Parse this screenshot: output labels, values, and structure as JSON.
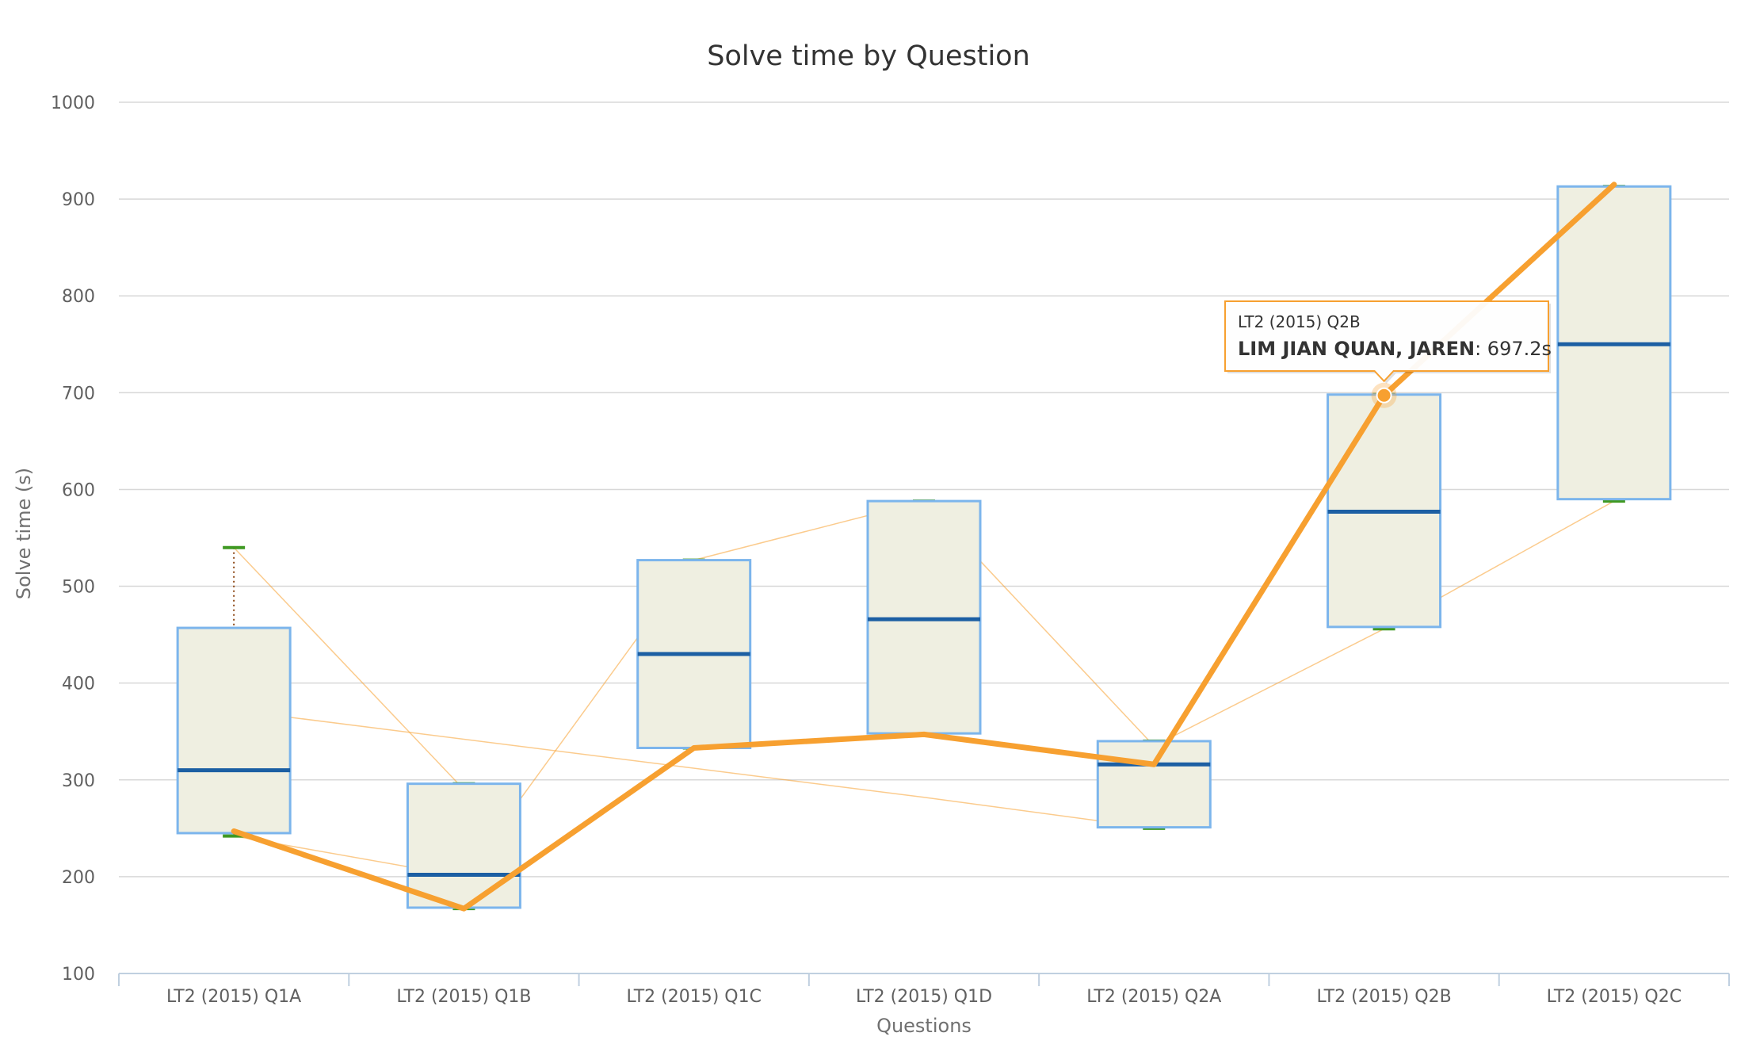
{
  "chart_data": {
    "type": "boxplot",
    "title": "Solve time by Question",
    "xlabel": "Questions",
    "ylabel": "Solve time (s)",
    "ylim": [
      100,
      1000
    ],
    "yticks": [
      100,
      200,
      300,
      400,
      500,
      600,
      700,
      800,
      900,
      1000
    ],
    "grid": true,
    "categories": [
      "LT2 (2015) Q1A",
      "LT2 (2015) Q1B",
      "LT2 (2015) Q1C",
      "LT2 (2015) Q1D",
      "LT2 (2015) Q2A",
      "LT2 (2015) Q2B",
      "LT2 (2015) Q2C"
    ],
    "boxes": [
      {
        "min": 242,
        "q1": 245,
        "median": 310,
        "q3": 457,
        "max": 540
      },
      {
        "min": 167,
        "q1": 168,
        "median": 202,
        "q3": 296,
        "max": 296
      },
      {
        "min": 333,
        "q1": 333,
        "median": 430,
        "q3": 527,
        "max": 527
      },
      {
        "min": 348,
        "q1": 348,
        "median": 466,
        "q3": 588,
        "max": 588
      },
      {
        "min": 250,
        "q1": 251,
        "median": 316,
        "q3": 340,
        "max": 340
      },
      {
        "min": 456,
        "q1": 458,
        "median": 577,
        "q3": 698,
        "max": 698
      },
      {
        "min": 588,
        "q1": 590,
        "median": 750,
        "q3": 913,
        "max": 913
      }
    ],
    "highlighted_series": {
      "values": [
        247,
        167,
        333,
        347,
        316,
        697.2,
        915
      ]
    },
    "faint_series": [
      {
        "values": [
          540,
          290,
          null,
          null,
          null,
          null,
          null
        ]
      },
      {
        "values": [
          242,
          200,
          527,
          588,
          335,
          null,
          null
        ]
      },
      {
        "values": [
          null,
          null,
          null,
          null,
          335,
          456,
          588
        ]
      },
      {
        "values": [
          372,
          null,
          null,
          282,
          250,
          null,
          null
        ]
      }
    ],
    "colors": {
      "box_fill": "#efefe1",
      "box_stroke": "#7cb5ec",
      "median": "#1c5fa3",
      "whisker_cap": "#3f9922",
      "whisker_stem": "#8b4513",
      "highlight_line": "#f7a030",
      "faint_line": "#f7a030",
      "grid": "#d8d8d8",
      "axis": "#c0d0e0"
    },
    "tooltip": {
      "category": "LT2 (2015) Q2B",
      "name": "LIM JIAN QUAN, JAREN",
      "value_text": ": 697.2s",
      "point_index": 5
    }
  }
}
